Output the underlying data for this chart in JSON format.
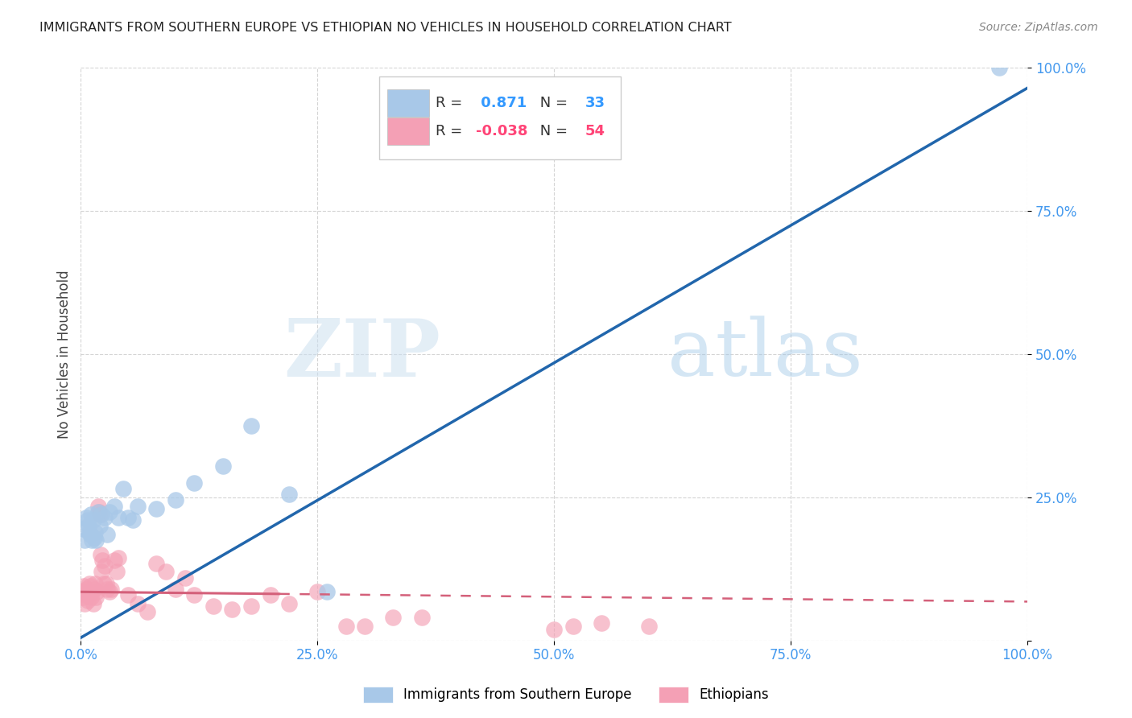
{
  "title": "IMMIGRANTS FROM SOUTHERN EUROPE VS ETHIOPIAN NO VEHICLES IN HOUSEHOLD CORRELATION CHART",
  "source": "Source: ZipAtlas.com",
  "ylabel": "No Vehicles in Household",
  "xlim": [
    0,
    1.0
  ],
  "ylim": [
    0,
    1.0
  ],
  "xticks": [
    0.0,
    0.25,
    0.5,
    0.75,
    1.0
  ],
  "xticklabels": [
    "0.0%",
    "25.0%",
    "50.0%",
    "75.0%",
    "100.0%"
  ],
  "yticks": [
    0.0,
    0.25,
    0.5,
    0.75,
    1.0
  ],
  "yticklabels": [
    "",
    "25.0%",
    "50.0%",
    "75.0%",
    "100.0%"
  ],
  "blue_R": 0.871,
  "blue_N": 33,
  "pink_R": -0.038,
  "pink_N": 54,
  "blue_color": "#a8c8e8",
  "pink_color": "#f4a0b5",
  "blue_line_color": "#2166ac",
  "pink_line_color": "#d4607a",
  "watermark_zip": "ZIP",
  "watermark_atlas": "atlas",
  "legend_label_blue": "Immigrants from Southern Europe",
  "legend_label_pink": "Ethiopians",
  "blue_R_color": "#3399ff",
  "pink_R_color": "#ff4477",
  "blue_scatter_x": [
    0.002,
    0.004,
    0.006,
    0.007,
    0.008,
    0.009,
    0.01,
    0.011,
    0.012,
    0.013,
    0.014,
    0.015,
    0.016,
    0.018,
    0.02,
    0.022,
    0.025,
    0.028,
    0.03,
    0.035,
    0.04,
    0.045,
    0.05,
    0.055,
    0.06,
    0.08,
    0.1,
    0.12,
    0.15,
    0.18,
    0.22,
    0.26,
    0.97
  ],
  "blue_scatter_y": [
    0.195,
    0.175,
    0.215,
    0.21,
    0.2,
    0.19,
    0.185,
    0.22,
    0.175,
    0.21,
    0.18,
    0.19,
    0.175,
    0.225,
    0.2,
    0.22,
    0.215,
    0.185,
    0.225,
    0.235,
    0.215,
    0.265,
    0.215,
    0.21,
    0.235,
    0.23,
    0.245,
    0.275,
    0.305,
    0.375,
    0.255,
    0.085,
    1.0
  ],
  "pink_scatter_x": [
    0.001,
    0.002,
    0.003,
    0.004,
    0.005,
    0.006,
    0.007,
    0.008,
    0.009,
    0.01,
    0.011,
    0.012,
    0.013,
    0.014,
    0.015,
    0.016,
    0.017,
    0.018,
    0.019,
    0.02,
    0.021,
    0.022,
    0.023,
    0.024,
    0.025,
    0.027,
    0.028,
    0.03,
    0.032,
    0.035,
    0.038,
    0.04,
    0.05,
    0.06,
    0.07,
    0.08,
    0.09,
    0.1,
    0.11,
    0.12,
    0.14,
    0.16,
    0.18,
    0.2,
    0.22,
    0.25,
    0.28,
    0.3,
    0.33,
    0.36,
    0.5,
    0.52,
    0.55,
    0.6
  ],
  "pink_scatter_y": [
    0.085,
    0.075,
    0.095,
    0.065,
    0.08,
    0.09,
    0.07,
    0.08,
    0.1,
    0.095,
    0.075,
    0.085,
    0.065,
    0.09,
    0.1,
    0.075,
    0.085,
    0.235,
    0.225,
    0.22,
    0.15,
    0.12,
    0.14,
    0.1,
    0.13,
    0.1,
    0.09,
    0.085,
    0.09,
    0.14,
    0.12,
    0.145,
    0.08,
    0.065,
    0.05,
    0.135,
    0.12,
    0.09,
    0.11,
    0.08,
    0.06,
    0.055,
    0.06,
    0.08,
    0.065,
    0.085,
    0.025,
    0.025,
    0.04,
    0.04,
    0.02,
    0.025,
    0.03,
    0.025
  ],
  "blue_line_x0": 0.0,
  "blue_line_y0": 0.005,
  "blue_line_x1": 1.0,
  "blue_line_y1": 0.965,
  "pink_line_x0": 0.0,
  "pink_line_y0": 0.085,
  "pink_line_solid_end": 0.21,
  "pink_line_dashed_end": 1.0,
  "pink_line_y1": 0.068,
  "background_color": "#ffffff",
  "grid_color": "#d0d0d0",
  "tick_color": "#4499ee"
}
